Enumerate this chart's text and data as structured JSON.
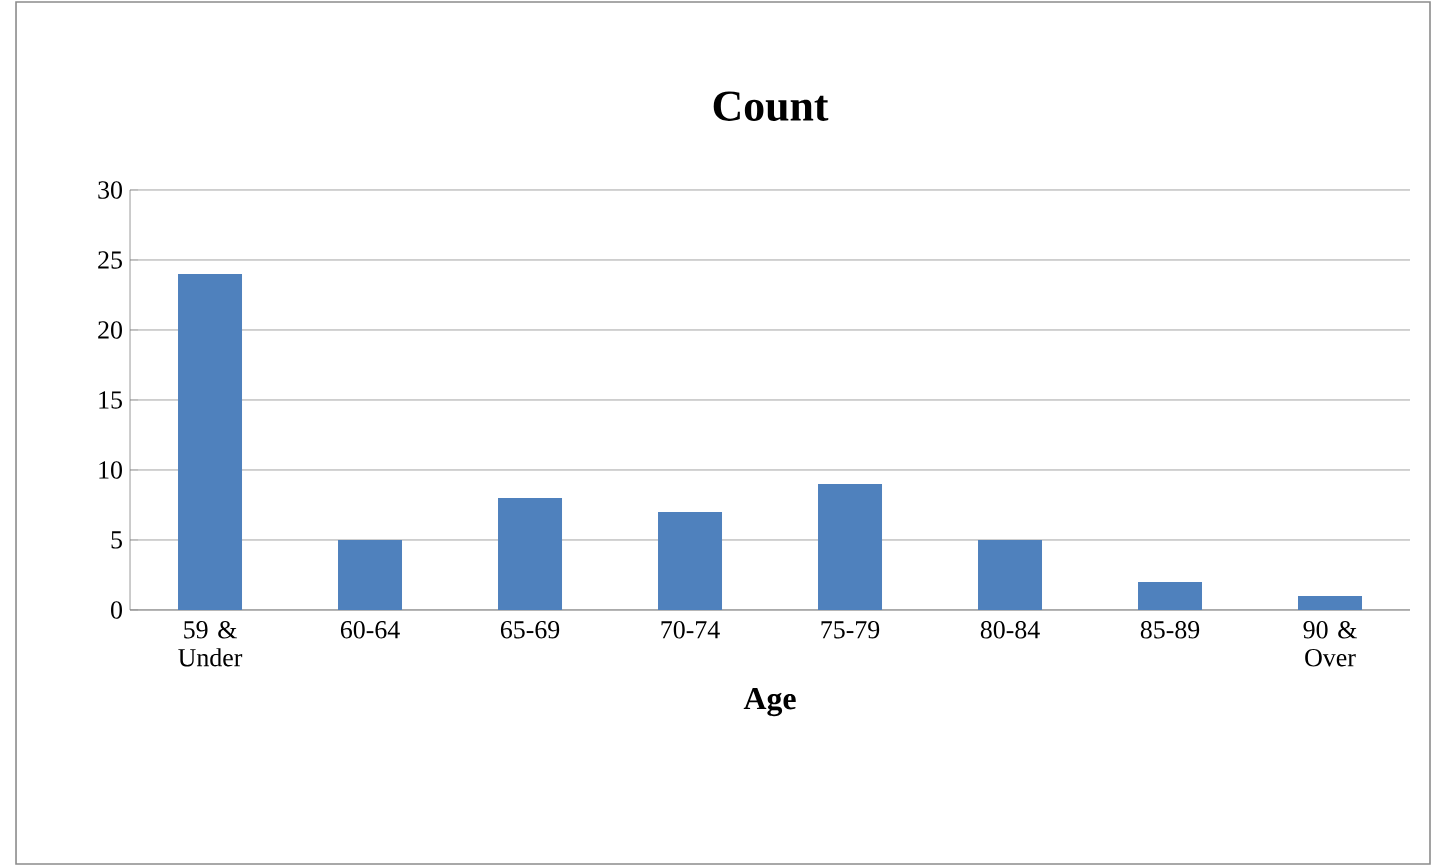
{
  "chart_data": {
    "type": "bar",
    "title": "Count",
    "xlabel": "Age",
    "categories": [
      "59 & Under",
      "60-64",
      "65-69",
      "70-74",
      "75-79",
      "80-84",
      "85-89",
      "90 & Over"
    ],
    "values": [
      24,
      5,
      8,
      7,
      9,
      5,
      2,
      1
    ],
    "color": "#4f81bd",
    "ylim": [
      0,
      30
    ],
    "yticks": [
      0,
      5,
      10,
      15,
      20,
      25,
      30
    ],
    "grid": "y"
  }
}
